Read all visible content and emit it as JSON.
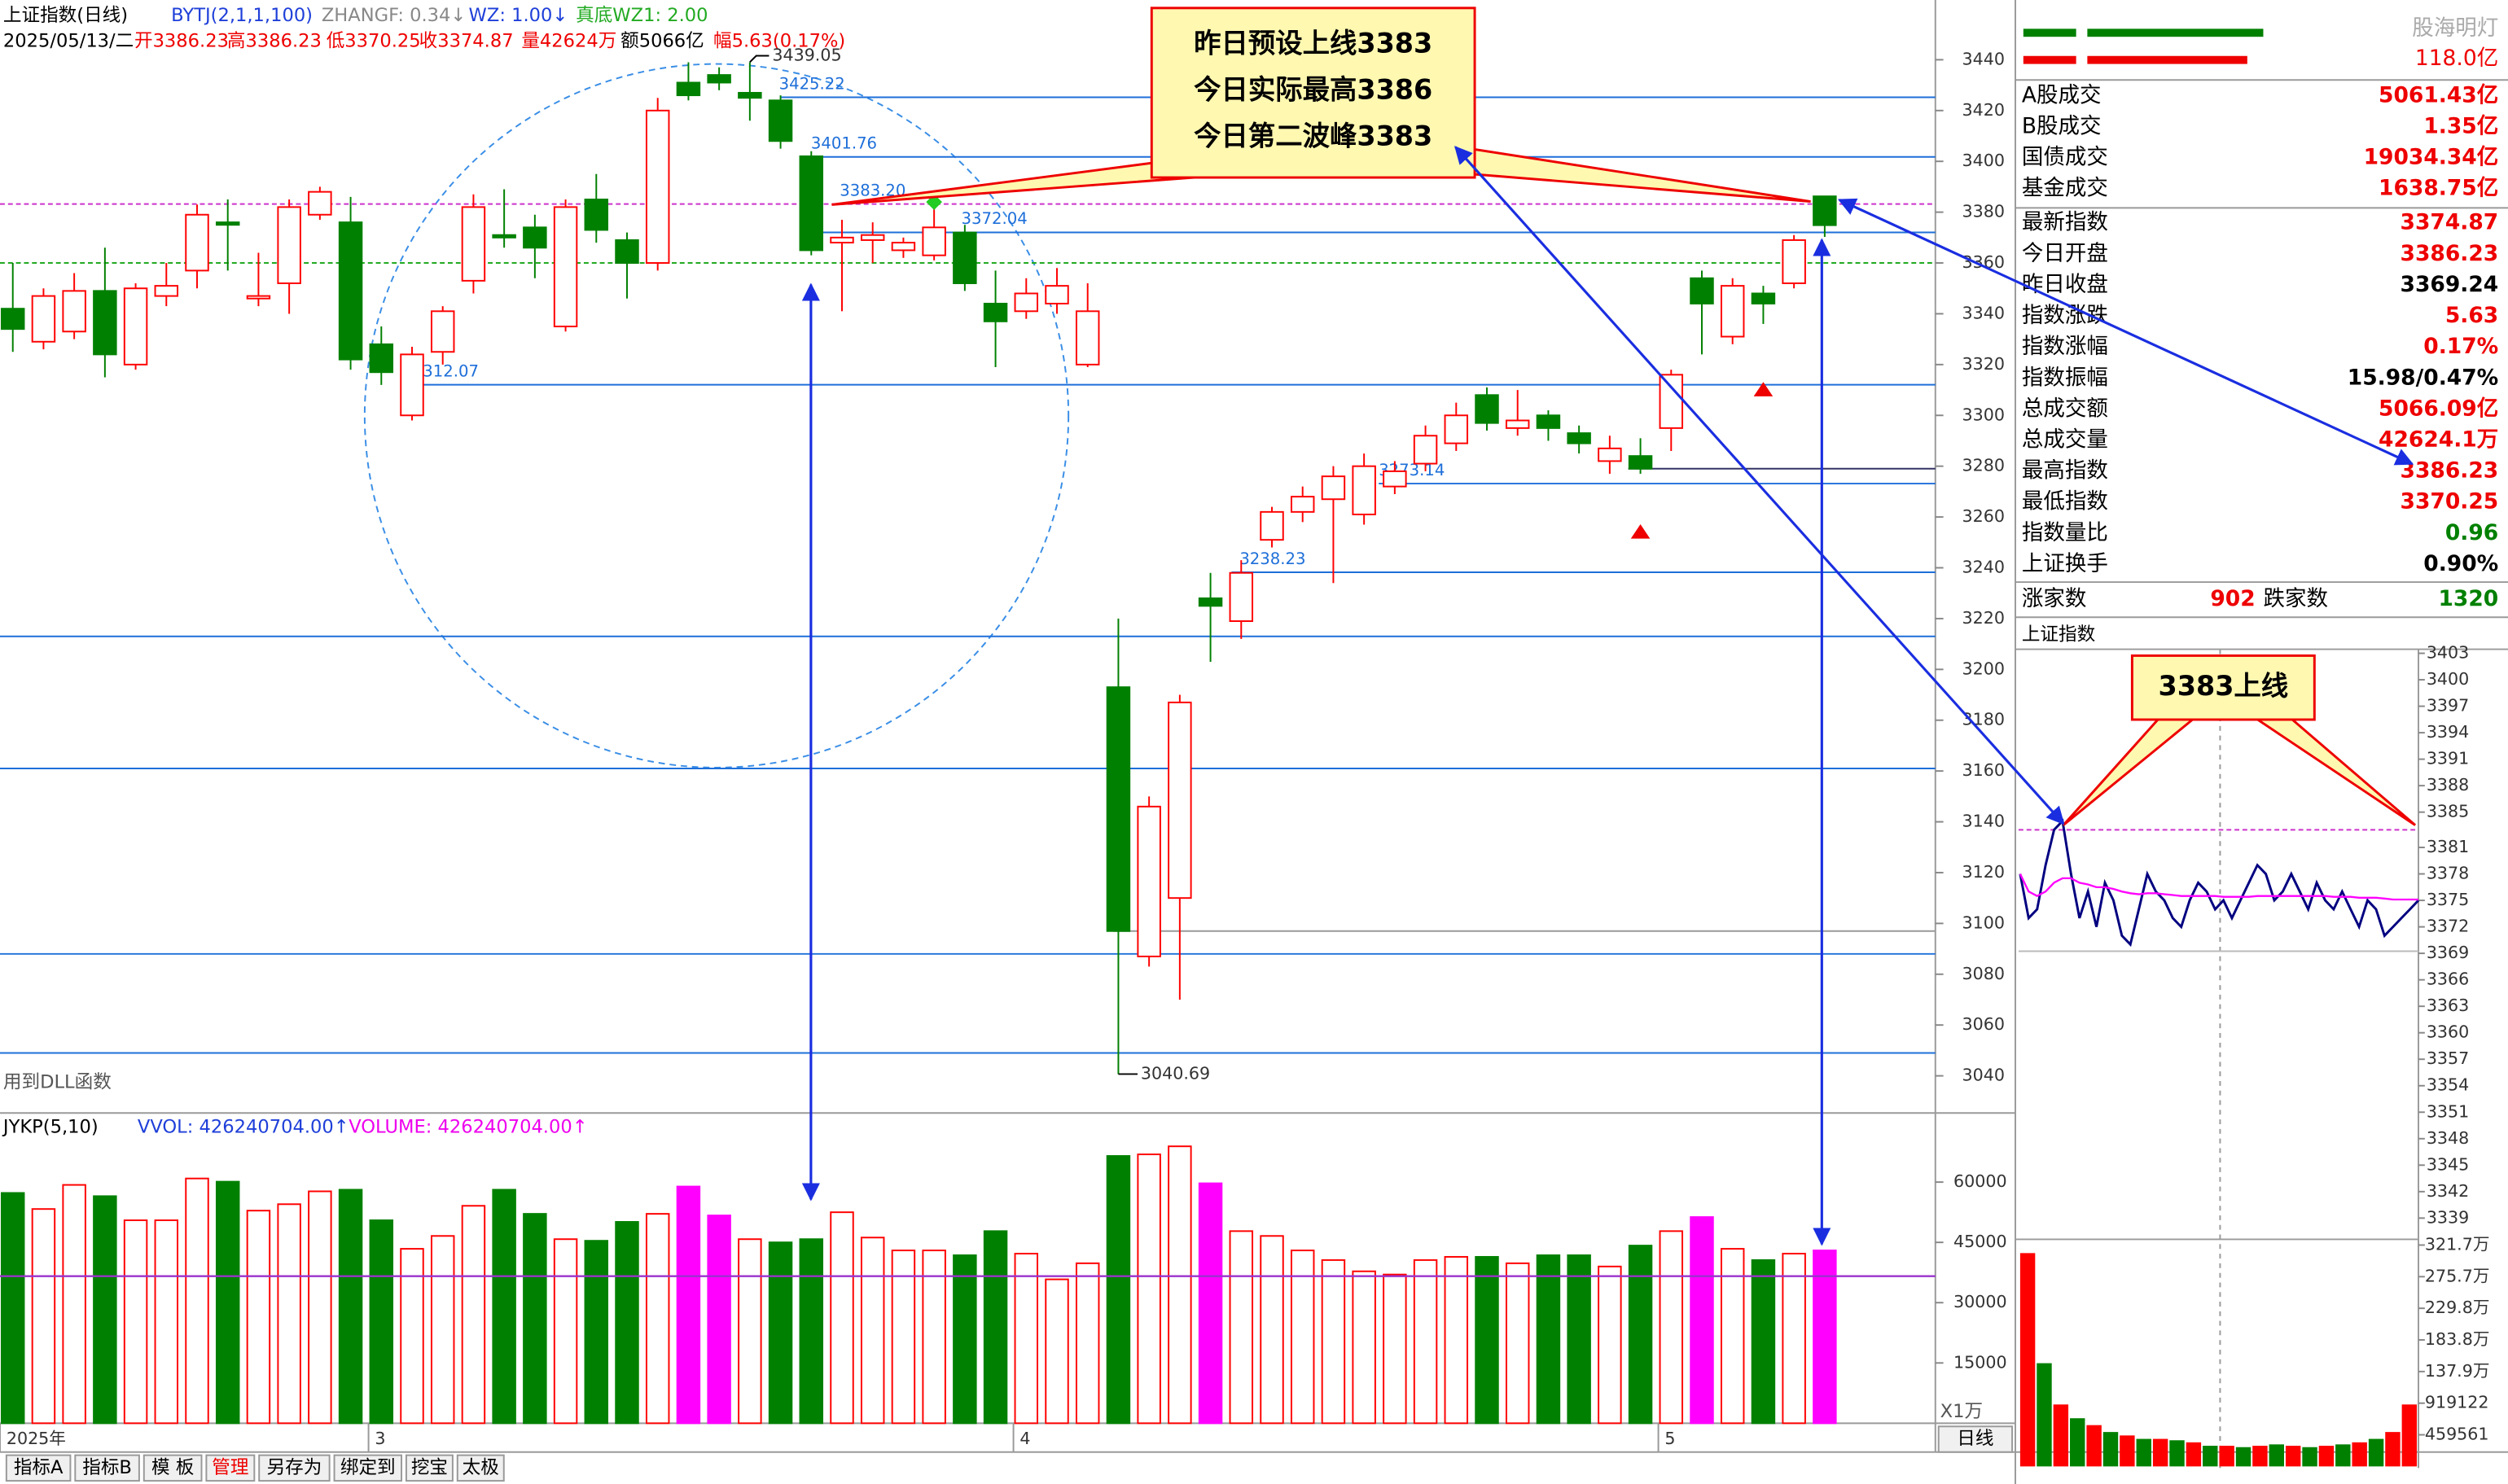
{
  "header": {
    "title": "上证指数(日线)",
    "indicator": "BYTJ(2,1,1,100)",
    "zhangf": "ZHANGF: 0.34↓",
    "wz": "WZ: 1.00↓",
    "wz1": "真底WZ1: 2.00",
    "date": "2025/05/13/二",
    "ohlc": [
      "开3386.23",
      "高3386.23",
      "低3370.25",
      "收3374.87",
      "量42624万",
      "额5066亿",
      "幅5.63(0.17%)"
    ]
  },
  "note": "用到DLL函数",
  "callouts": {
    "main": [
      "昨日预设上线3383",
      "今日实际最高3386",
      "今日第二波峰3383"
    ],
    "intraday": "3383上线"
  },
  "chart_data": [
    {
      "type": "candlestick",
      "categories": [
        "2025年",
        null,
        null,
        null,
        null,
        null,
        null,
        null,
        null,
        null,
        null,
        null,
        "3",
        null,
        null,
        null,
        null,
        null,
        null,
        null,
        null,
        null,
        null,
        null,
        null,
        null,
        null,
        null,
        null,
        null,
        null,
        null,
        null,
        "4",
        null,
        null,
        null,
        null,
        null,
        null,
        null,
        null,
        null,
        null,
        null,
        null,
        null,
        null,
        null,
        null,
        null,
        null,
        null,
        null,
        "5",
        null,
        null,
        null,
        null,
        null
      ],
      "open": [
        3342,
        3329,
        3333,
        3349,
        3320,
        3347,
        3357,
        3376,
        3346,
        3352,
        3379,
        3376,
        3328,
        3300,
        3325,
        3353,
        3371,
        3374,
        3335,
        3385,
        3369,
        3360,
        3431,
        3434,
        3427,
        3424,
        3402,
        3368,
        3369,
        3365,
        3363,
        3372,
        3344,
        3341,
        3344,
        3320,
        3193,
        3087,
        3110,
        3228,
        3219,
        3251,
        3262,
        3267,
        3261,
        3272,
        3281,
        3289,
        3308,
        3295,
        3300,
        3293,
        3282,
        3284,
        3295,
        3354,
        3331,
        3348,
        3352,
        3386.23
      ],
      "high": [
        3360,
        3350,
        3356,
        3366,
        3352,
        3360,
        3383,
        3385,
        3364,
        3385,
        3390,
        3386,
        3335,
        3327,
        3343,
        3387,
        3389,
        3379,
        3385,
        3395,
        3372,
        3425,
        3439,
        3437,
        3439.05,
        3426,
        3404,
        3377,
        3376,
        3370,
        3383,
        3375,
        3357,
        3354,
        3358,
        3352,
        3220,
        3150,
        3190,
        3238,
        3243,
        3264,
        3272,
        3280,
        3285,
        3282,
        3296,
        3305,
        3311,
        3310,
        3302,
        3296,
        3292,
        3291,
        3318,
        3357,
        3354,
        3351,
        3371,
        3386.23
      ],
      "low": [
        3325,
        3326,
        3330,
        3315,
        3318,
        3343,
        3350,
        3357,
        3343,
        3340,
        3377,
        3318,
        3312,
        3298,
        3320,
        3348,
        3366,
        3354,
        3333,
        3368,
        3346,
        3357,
        3424,
        3428,
        3416,
        3405,
        3363,
        3341,
        3360,
        3362,
        3361,
        3349,
        3319,
        3338,
        3340,
        3319,
        3040.69,
        3083,
        3070,
        3203,
        3212,
        3248,
        3258,
        3234,
        3257,
        3269,
        3278,
        3286,
        3294,
        3292,
        3290,
        3285,
        3277,
        3277,
        3286,
        3324,
        3328,
        3336,
        3350,
        3370.25
      ],
      "close": [
        3334,
        3347,
        3349,
        3324,
        3350,
        3351,
        3379,
        3375,
        3347,
        3382,
        3388,
        3322,
        3317,
        3324,
        3341,
        3382,
        3370,
        3366,
        3382,
        3373,
        3360,
        3420,
        3426,
        3431,
        3425,
        3408,
        3365,
        3370,
        3371,
        3368,
        3374,
        3352,
        3337,
        3348,
        3351,
        3341,
        3097,
        3146,
        3187,
        3225,
        3238,
        3262,
        3268,
        3276,
        3280,
        3278,
        3292,
        3300,
        3297,
        3298,
        3295,
        3289,
        3287,
        3279,
        3316,
        3344,
        3351,
        3344,
        3369,
        3374.87
      ],
      "up_color": "#ff0000",
      "down_color": "#008000",
      "ylim": [
        3026,
        3461
      ],
      "yticks": [
        3040,
        3060,
        3080,
        3100,
        3120,
        3140,
        3160,
        3180,
        3200,
        3220,
        3240,
        3260,
        3280,
        3300,
        3320,
        3340,
        3360,
        3380,
        3400,
        3420,
        3440
      ],
      "lines": [
        {
          "value": 3425.22,
          "label": "3425.22",
          "color": "#1e6fd9",
          "dashed": false
        },
        {
          "value": 3401.76,
          "label": "3401.76",
          "color": "#1e6fd9",
          "dashed": false
        },
        {
          "value": 3383.2,
          "label": "3383.20",
          "color": "#cc33cc",
          "dashed": true
        },
        {
          "value": 3372.04,
          "label": "3372.04",
          "color": "#1e6fd9",
          "dashed": false
        },
        {
          "value": 3360,
          "color": "#22aa22",
          "dashed": true
        },
        {
          "value": 3312.07,
          "label": "3312.07",
          "color": "#1e6fd9",
          "dashed": false
        },
        {
          "value": 3279,
          "color": "#333366",
          "dashed": false
        },
        {
          "value": 3273.14,
          "label": "3273.14",
          "color": "#1e6fd9",
          "dashed": false
        },
        {
          "value": 3238.23,
          "label": "3238.23",
          "color": "#1e6fd9",
          "dashed": false
        },
        {
          "value": 3213,
          "color": "#1e6fd9",
          "dashed": false
        },
        {
          "value": 3161,
          "color": "#1e6fd9",
          "dashed": false
        },
        {
          "value": 3097,
          "color": "#999999",
          "dashed": false
        },
        {
          "value": 3088,
          "color": "#1e6fd9",
          "dashed": false
        },
        {
          "value": 3049,
          "color": "#1e6fd9",
          "dashed": false
        }
      ],
      "markers": [
        {
          "index": 30,
          "value": 3384,
          "shape": "diamond",
          "color": "#22cc22"
        },
        {
          "index": 57,
          "value": 3310,
          "shape": "triangle",
          "color": "#ee0000"
        },
        {
          "index": 53,
          "value": 3254,
          "shape": "triangle",
          "color": "#ee0000"
        }
      ]
    },
    {
      "type": "bar",
      "title": "JYKP(5,10)",
      "legend": [
        {
          "text": "VVOL: 426240704.00↑",
          "color": "#1e3fd9"
        },
        {
          "text": "VOLUME: 426240704.00↑",
          "color": "#ee00ee"
        }
      ],
      "unit": "X1万",
      "values": [
        57300,
        53300,
        59300,
        56500,
        50500,
        50500,
        60900,
        60100,
        52900,
        54500,
        57700,
        58100,
        50500,
        43400,
        46600,
        54100,
        58100,
        52100,
        45800,
        45400,
        50100,
        52100,
        58900,
        51700,
        45800,
        45000,
        45800,
        52500,
        46200,
        43000,
        43000,
        41800,
        47800,
        42200,
        35800,
        39800,
        66500,
        66900,
        68900,
        59700,
        47800,
        46600,
        43000,
        40600,
        37800,
        37000,
        40600,
        41400,
        41400,
        39800,
        41800,
        41800,
        39000,
        44200,
        47800,
        51300,
        43400,
        40600,
        42200,
        43000
      ],
      "colors": [
        "#008000",
        "#ff0000",
        "#ff0000",
        "#008000",
        "#ff0000",
        "#ff0000",
        "#ff0000",
        "#008000",
        "#ff0000",
        "#ff0000",
        "#ff0000",
        "#008000",
        "#008000",
        "#ff0000",
        "#ff0000",
        "#ff0000",
        "#008000",
        "#008000",
        "#ff0000",
        "#008000",
        "#008000",
        "#ff0000",
        "#ff00ff",
        "#ff00ff",
        "#ff0000",
        "#008000",
        "#008000",
        "#ff0000",
        "#ff0000",
        "#ff0000",
        "#ff0000",
        "#008000",
        "#008000",
        "#ff0000",
        "#ff0000",
        "#ff0000",
        "#008000",
        "#ff0000",
        "#ff0000",
        "#ff00ff",
        "#ff0000",
        "#ff0000",
        "#ff0000",
        "#ff0000",
        "#ff0000",
        "#ff0000",
        "#ff0000",
        "#ff0000",
        "#008000",
        "#ff0000",
        "#008000",
        "#008000",
        "#ff0000",
        "#008000",
        "#ff0000",
        "#ff00ff",
        "#ff0000",
        "#008000",
        "#ff0000",
        "#ff00ff"
      ],
      "hollow_color": "#ff0000",
      "average": 36600,
      "average_color": "#9933cc",
      "ylim": [
        0,
        75600
      ],
      "yticks": [
        15000,
        30000,
        45000,
        60000
      ]
    },
    {
      "type": "line",
      "title": "上证指数",
      "series": [
        {
          "color": "#000080",
          "values": [
            3378,
            3373,
            3374,
            3379,
            3383,
            3384,
            3378,
            3373,
            3376,
            3372,
            3377,
            3375,
            3371,
            3370,
            3374,
            3378,
            3376,
            3375,
            3373,
            3372,
            3375,
            3377,
            3376,
            3374,
            3375,
            3373,
            3375,
            3377,
            3379,
            3378,
            3375,
            3376,
            3378,
            3376,
            3374,
            3377,
            3375,
            3374,
            3376,
            3374,
            3372,
            3375,
            3374,
            3371,
            3372,
            3373,
            3374,
            3375
          ]
        },
        {
          "color": "#ff00ff",
          "values": [
            3378,
            3376,
            3375.5,
            3376,
            3377,
            3377.5,
            3377.5,
            3377,
            3376.8,
            3376.5,
            3376.5,
            3376.3,
            3376,
            3375.8,
            3375.7,
            3375.8,
            3375.8,
            3375.7,
            3375.6,
            3375.5,
            3375.5,
            3375.5,
            3375.5,
            3375.5,
            3375.4,
            3375.4,
            3375.4,
            3375.4,
            3375.5,
            3375.5,
            3375.5,
            3375.5,
            3375.5,
            3375.5,
            3375.5,
            3375.5,
            3375.5,
            3375.4,
            3375.4,
            3375.4,
            3375.3,
            3375.3,
            3375.3,
            3375.2,
            3375.1,
            3375.1,
            3375.1,
            3375.1
          ]
        }
      ],
      "baseline": 3369.24,
      "reference": 3383,
      "ylim": [
        3337.5,
        3404
      ],
      "yticks": [
        3403,
        3400,
        3397,
        3394,
        3391,
        3388,
        3385,
        3381,
        3378,
        3375,
        3372,
        3369,
        3366,
        3363,
        3360,
        3357,
        3354,
        3351,
        3348,
        3345,
        3342,
        3339
      ]
    },
    {
      "type": "bar",
      "values": [
        3100000,
        1500000,
        900000,
        700000,
        600000,
        500000,
        450000,
        400000,
        400000,
        380000,
        350000,
        300000,
        300000,
        280000,
        300000,
        320000,
        300000,
        280000,
        300000,
        320000,
        350000,
        400000,
        500000,
        900000
      ],
      "colors": [
        "#ff0000",
        "#008000",
        "#ff0000",
        "#008000",
        "#ff0000",
        "#008000",
        "#ff0000",
        "#008000",
        "#ff0000",
        "#008000",
        "#ff0000",
        "#008000",
        "#ff0000",
        "#008000",
        "#ff0000",
        "#008000",
        "#ff0000",
        "#008000",
        "#ff0000",
        "#008000",
        "#ff0000",
        "#008000",
        "#ff0000",
        "#ff0000"
      ],
      "ylim": [
        0,
        3300000
      ],
      "yticks": [
        459561,
        919122,
        {
          "value": 1378683,
          "label": "137.9万"
        },
        {
          "value": 1838244,
          "label": "183.8万"
        },
        {
          "value": 2297805,
          "label": "229.8万"
        },
        {
          "value": 2757366,
          "label": "275.7万"
        },
        {
          "value": 3216927,
          "label": "321.7万"
        }
      ]
    }
  ],
  "quote_panel": {
    "brand": "股海明灯",
    "top_value": "118.0亿",
    "rows": [
      {
        "label": "A股成交",
        "value": "5061.43亿",
        "color": "#ee0000"
      },
      {
        "label": "B股成交",
        "value": "1.35亿",
        "color": "#ee0000"
      },
      {
        "label": "国债成交",
        "value": "19034.34亿",
        "color": "#ee0000"
      },
      {
        "label": "基金成交",
        "value": "1638.75亿",
        "color": "#ee0000"
      },
      {
        "label": "最新指数",
        "value": "3374.87",
        "color": "#ee0000"
      },
      {
        "label": "今日开盘",
        "value": "3386.23",
        "color": "#ee0000"
      },
      {
        "label": "昨日收盘",
        "value": "3369.24",
        "color": "#000000"
      },
      {
        "label": "指数涨跌",
        "value": "5.63",
        "color": "#ee0000"
      },
      {
        "label": "指数涨幅",
        "value": "0.17%",
        "color": "#ee0000"
      },
      {
        "label": "指数振幅",
        "value": "15.98/0.47%",
        "color": "#000000"
      },
      {
        "label": "总成交额",
        "value": "5066.09亿",
        "color": "#ee0000"
      },
      {
        "label": "总成交量",
        "value": "42624.1万",
        "color": "#ee0000"
      },
      {
        "label": "最高指数",
        "value": "3386.23",
        "color": "#ee0000"
      },
      {
        "label": "最低指数",
        "value": "3370.25",
        "color": "#ee0000"
      },
      {
        "label": "指数量比",
        "value": "0.96",
        "color": "#008000"
      },
      {
        "label": "上证换手",
        "value": "0.90%",
        "color": "#000000"
      }
    ],
    "up_label": "涨家数",
    "up_count": "902",
    "down_label": "跌家数",
    "down_count": "1320"
  },
  "toolbar": {
    "tabs": [
      "指标A",
      "指标B",
      "模 板",
      "管理",
      "另存为",
      "绑定到",
      "挖宝",
      "太极"
    ],
    "period": "日线"
  }
}
